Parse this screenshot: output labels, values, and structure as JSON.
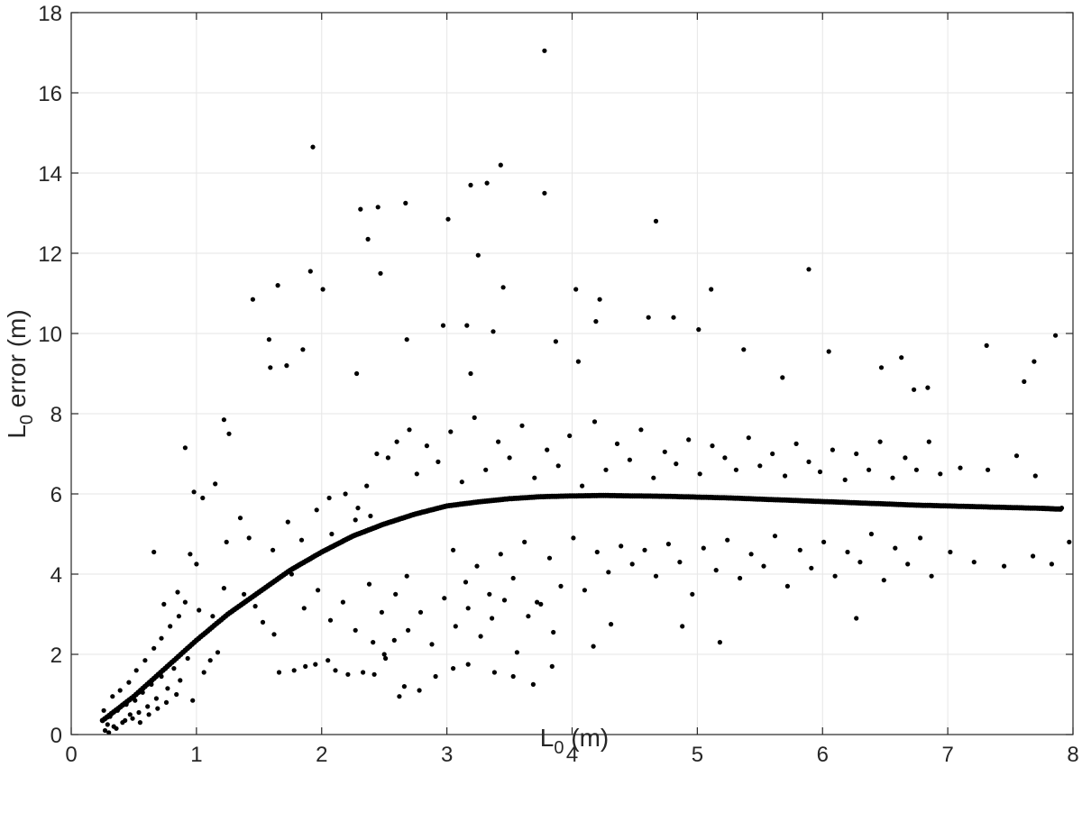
{
  "chart_data": {
    "type": "scatter",
    "title": "",
    "xlabel": "L0 (m)",
    "xlabel_parts": [
      "L",
      "0",
      " (m)"
    ],
    "ylabel": "L0 error (m)",
    "ylabel_parts": [
      "L",
      "0",
      " error (m)"
    ],
    "xlim": [
      0,
      8
    ],
    "ylim": [
      0,
      18
    ],
    "xticks": [
      0,
      1,
      2,
      3,
      4,
      5,
      6,
      7,
      8
    ],
    "yticks": [
      0,
      2,
      4,
      6,
      8,
      10,
      12,
      14,
      16,
      18
    ],
    "grid": true,
    "legend": "none",
    "marker_color": "#000000",
    "series": [
      {
        "name": "",
        "points": [
          [
            3.78,
            17.05
          ],
          [
            1.93,
            14.65
          ],
          [
            3.43,
            14.2
          ],
          [
            3.32,
            13.75
          ],
          [
            3.19,
            13.7
          ],
          [
            2.31,
            13.1
          ],
          [
            2.45,
            13.15
          ],
          [
            2.67,
            13.25
          ],
          [
            3.01,
            12.85
          ],
          [
            2.37,
            12.35
          ],
          [
            3.78,
            13.5
          ],
          [
            4.67,
            12.8
          ],
          [
            3.25,
            11.95
          ],
          [
            5.89,
            11.6
          ],
          [
            1.91,
            11.55
          ],
          [
            2.47,
            11.5
          ],
          [
            3.45,
            11.15
          ],
          [
            1.65,
            11.2
          ],
          [
            2.01,
            11.1
          ],
          [
            4.03,
            11.1
          ],
          [
            1.45,
            10.85
          ],
          [
            4.22,
            10.85
          ],
          [
            5.11,
            11.1
          ],
          [
            2.97,
            10.2
          ],
          [
            3.16,
            10.2
          ],
          [
            4.19,
            10.3
          ],
          [
            3.37,
            10.05
          ],
          [
            4.61,
            10.4
          ],
          [
            4.81,
            10.4
          ],
          [
            5.01,
            10.1
          ],
          [
            7.86,
            9.95
          ],
          [
            1.58,
            9.85
          ],
          [
            2.68,
            9.85
          ],
          [
            3.87,
            9.8
          ],
          [
            1.85,
            9.6
          ],
          [
            5.37,
            9.6
          ],
          [
            6.05,
            9.55
          ],
          [
            7.31,
            9.7
          ],
          [
            1.59,
            9.15
          ],
          [
            1.72,
            9.2
          ],
          [
            4.05,
            9.3
          ],
          [
            7.69,
            9.3
          ],
          [
            6.47,
            9.15
          ],
          [
            2.28,
            9.0
          ],
          [
            3.19,
            9.0
          ],
          [
            6.63,
            9.4
          ],
          [
            5.68,
            8.9
          ],
          [
            1.22,
            7.85
          ],
          [
            0.91,
            7.15
          ],
          [
            1.26,
            7.5
          ],
          [
            6.73,
            8.6
          ],
          [
            6.84,
            8.65
          ],
          [
            7.61,
            8.8
          ],
          [
            0.98,
            6.05
          ],
          [
            1.05,
            5.9
          ],
          [
            1.15,
            6.25
          ],
          [
            0.66,
            4.55
          ],
          [
            0.95,
            4.5
          ],
          [
            1.0,
            4.25
          ],
          [
            1.24,
            4.8
          ],
          [
            1.42,
            4.9
          ],
          [
            1.35,
            5.4
          ],
          [
            0.74,
            3.25
          ],
          [
            0.85,
            3.55
          ],
          [
            0.91,
            3.3
          ],
          [
            1.02,
            3.1
          ],
          [
            1.13,
            2.95
          ],
          [
            1.22,
            3.65
          ],
          [
            1.38,
            3.5
          ],
          [
            1.47,
            3.2
          ],
          [
            1.53,
            2.8
          ],
          [
            1.62,
            2.5
          ],
          [
            1.66,
            1.55
          ],
          [
            1.78,
            1.6
          ],
          [
            1.87,
            1.7
          ],
          [
            1.95,
            1.75
          ],
          [
            2.05,
            1.85
          ],
          [
            2.11,
            1.6
          ],
          [
            2.21,
            1.5
          ],
          [
            2.33,
            1.55
          ],
          [
            2.42,
            1.5
          ],
          [
            2.51,
            1.9
          ],
          [
            2.62,
            0.95
          ],
          [
            2.66,
            1.2
          ],
          [
            2.78,
            1.1
          ],
          [
            2.91,
            1.45
          ],
          [
            3.05,
            1.65
          ],
          [
            3.17,
            1.75
          ],
          [
            3.38,
            1.55
          ],
          [
            3.53,
            1.45
          ],
          [
            3.69,
            1.25
          ],
          [
            3.84,
            1.7
          ],
          [
            4.17,
            2.2
          ],
          [
            4.31,
            2.75
          ],
          [
            4.88,
            2.7
          ],
          [
            5.18,
            2.3
          ],
          [
            6.27,
            2.9
          ],
          [
            0.27,
            0.1
          ],
          [
            0.29,
            0.25
          ],
          [
            0.31,
            0.45
          ],
          [
            0.34,
            0.2
          ],
          [
            0.37,
            0.6
          ],
          [
            0.41,
            0.3
          ],
          [
            0.44,
            0.75
          ],
          [
            0.47,
            0.5
          ],
          [
            0.51,
            0.85
          ],
          [
            0.54,
            0.55
          ],
          [
            0.57,
            1.05
          ],
          [
            0.61,
            0.7
          ],
          [
            0.64,
            1.25
          ],
          [
            0.68,
            0.9
          ],
          [
            0.72,
            1.45
          ],
          [
            0.77,
            1.15
          ],
          [
            0.82,
            1.65
          ],
          [
            0.87,
            1.35
          ],
          [
            0.93,
            1.9
          ],
          [
            0.97,
            0.85
          ],
          [
            1.06,
            1.55
          ],
          [
            1.11,
            1.85
          ],
          [
            1.17,
            2.05
          ],
          [
            0.26,
            0.6
          ],
          [
            0.33,
            0.95
          ],
          [
            0.39,
            1.1
          ],
          [
            0.46,
            1.3
          ],
          [
            0.52,
            1.6
          ],
          [
            0.59,
            1.85
          ],
          [
            0.66,
            2.15
          ],
          [
            0.72,
            2.4
          ],
          [
            0.79,
            2.7
          ],
          [
            0.86,
            2.95
          ],
          [
            0.3,
            0.05
          ],
          [
            0.36,
            0.15
          ],
          [
            0.43,
            0.35
          ],
          [
            0.49,
            0.4
          ],
          [
            0.55,
            0.3
          ],
          [
            0.62,
            0.5
          ],
          [
            0.69,
            0.65
          ],
          [
            0.76,
            0.8
          ],
          [
            0.84,
            1.0
          ],
          [
            2.08,
            5.0
          ],
          [
            2.27,
            5.35
          ],
          [
            2.36,
            6.2
          ],
          [
            2.44,
            7.0
          ],
          [
            2.53,
            6.9
          ],
          [
            2.6,
            7.3
          ],
          [
            2.7,
            7.6
          ],
          [
            2.76,
            6.5
          ],
          [
            2.84,
            7.2
          ],
          [
            2.93,
            6.8
          ],
          [
            3.03,
            7.55
          ],
          [
            3.12,
            6.3
          ],
          [
            3.22,
            7.9
          ],
          [
            3.31,
            6.6
          ],
          [
            3.41,
            7.3
          ],
          [
            3.5,
            6.9
          ],
          [
            3.6,
            7.7
          ],
          [
            3.7,
            6.4
          ],
          [
            3.8,
            7.1
          ],
          [
            3.89,
            6.7
          ],
          [
            3.98,
            7.45
          ],
          [
            4.08,
            6.2
          ],
          [
            4.18,
            7.8
          ],
          [
            4.27,
            6.6
          ],
          [
            4.36,
            7.25
          ],
          [
            4.46,
            6.85
          ],
          [
            4.55,
            7.6
          ],
          [
            4.65,
            6.4
          ],
          [
            4.74,
            7.05
          ],
          [
            4.83,
            6.75
          ],
          [
            4.93,
            7.35
          ],
          [
            5.02,
            6.5
          ],
          [
            5.12,
            7.2
          ],
          [
            5.22,
            6.9
          ],
          [
            5.31,
            6.6
          ],
          [
            5.41,
            7.4
          ],
          [
            5.5,
            6.7
          ],
          [
            5.6,
            7.0
          ],
          [
            5.7,
            6.45
          ],
          [
            5.79,
            7.25
          ],
          [
            5.89,
            6.8
          ],
          [
            5.98,
            6.55
          ],
          [
            6.08,
            7.1
          ],
          [
            6.18,
            6.35
          ],
          [
            6.27,
            7.0
          ],
          [
            6.37,
            6.6
          ],
          [
            6.46,
            7.3
          ],
          [
            6.56,
            6.4
          ],
          [
            6.66,
            6.9
          ],
          [
            6.75,
            6.6
          ],
          [
            6.85,
            7.3
          ],
          [
            6.94,
            6.5
          ],
          [
            7.1,
            6.65
          ],
          [
            7.32,
            6.6
          ],
          [
            7.55,
            6.95
          ],
          [
            7.7,
            6.45
          ],
          [
            3.05,
            4.6
          ],
          [
            3.15,
            3.8
          ],
          [
            3.24,
            4.2
          ],
          [
            3.34,
            3.5
          ],
          [
            3.43,
            4.5
          ],
          [
            3.53,
            3.9
          ],
          [
            3.62,
            4.8
          ],
          [
            3.72,
            3.3
          ],
          [
            3.82,
            4.4
          ],
          [
            3.91,
            3.7
          ],
          [
            4.01,
            4.9
          ],
          [
            4.1,
            3.6
          ],
          [
            4.2,
            4.55
          ],
          [
            4.29,
            4.05
          ],
          [
            4.39,
            4.7
          ],
          [
            4.48,
            4.25
          ],
          [
            4.58,
            4.6
          ],
          [
            4.67,
            3.95
          ],
          [
            4.77,
            4.75
          ],
          [
            4.86,
            4.3
          ],
          [
            4.96,
            3.5
          ],
          [
            5.05,
            4.65
          ],
          [
            5.15,
            4.1
          ],
          [
            5.24,
            4.85
          ],
          [
            5.34,
            3.9
          ],
          [
            5.43,
            4.5
          ],
          [
            5.53,
            4.2
          ],
          [
            5.62,
            4.95
          ],
          [
            5.72,
            3.7
          ],
          [
            5.82,
            4.6
          ],
          [
            5.91,
            4.15
          ],
          [
            6.01,
            4.8
          ],
          [
            6.1,
            3.95
          ],
          [
            6.2,
            4.55
          ],
          [
            6.3,
            4.3
          ],
          [
            6.39,
            5.0
          ],
          [
            6.49,
            3.85
          ],
          [
            6.58,
            4.65
          ],
          [
            6.68,
            4.25
          ],
          [
            6.78,
            4.9
          ],
          [
            6.87,
            3.95
          ],
          [
            7.02,
            4.55
          ],
          [
            7.21,
            4.3
          ],
          [
            7.45,
            4.2
          ],
          [
            7.68,
            4.45
          ],
          [
            7.83,
            4.25
          ],
          [
            7.97,
            4.8
          ],
          [
            7.91,
            5.65
          ],
          [
            2.41,
            2.3
          ],
          [
            2.5,
            2.0
          ],
          [
            2.59,
            3.5
          ],
          [
            2.69,
            2.6
          ],
          [
            2.79,
            3.05
          ],
          [
            2.88,
            2.25
          ],
          [
            2.98,
            3.4
          ],
          [
            3.07,
            2.7
          ],
          [
            3.17,
            3.15
          ],
          [
            3.27,
            2.45
          ],
          [
            3.36,
            2.9
          ],
          [
            3.46,
            3.35
          ],
          [
            3.56,
            2.05
          ],
          [
            3.65,
            2.95
          ],
          [
            3.75,
            3.25
          ],
          [
            3.85,
            2.55
          ],
          [
            1.76,
            4.0
          ],
          [
            1.86,
            3.15
          ],
          [
            1.97,
            3.6
          ],
          [
            2.07,
            2.85
          ],
          [
            2.17,
            3.3
          ],
          [
            2.27,
            2.6
          ],
          [
            2.38,
            3.75
          ],
          [
            2.48,
            3.05
          ],
          [
            2.58,
            2.35
          ],
          [
            2.68,
            3.95
          ],
          [
            1.61,
            4.6
          ],
          [
            1.73,
            5.3
          ],
          [
            1.84,
            4.85
          ],
          [
            1.96,
            5.6
          ],
          [
            2.06,
            5.9
          ],
          [
            2.19,
            6.0
          ],
          [
            2.29,
            5.65
          ],
          [
            2.39,
            5.45
          ]
        ]
      },
      {
        "name": "",
        "curve": [
          [
            0.25,
            0.35
          ],
          [
            0.5,
            0.95
          ],
          [
            0.75,
            1.65
          ],
          [
            1.0,
            2.35
          ],
          [
            1.25,
            3.0
          ],
          [
            1.5,
            3.55
          ],
          [
            1.75,
            4.1
          ],
          [
            2.0,
            4.55
          ],
          [
            2.25,
            4.95
          ],
          [
            2.5,
            5.25
          ],
          [
            2.75,
            5.5
          ],
          [
            3.0,
            5.7
          ],
          [
            3.25,
            5.8
          ],
          [
            3.5,
            5.88
          ],
          [
            3.75,
            5.93
          ],
          [
            4.0,
            5.95
          ],
          [
            4.25,
            5.96
          ],
          [
            4.5,
            5.95
          ],
          [
            4.75,
            5.94
          ],
          [
            5.0,
            5.92
          ],
          [
            5.25,
            5.9
          ],
          [
            5.5,
            5.87
          ],
          [
            5.75,
            5.84
          ],
          [
            6.0,
            5.81
          ],
          [
            6.25,
            5.78
          ],
          [
            6.5,
            5.75
          ],
          [
            6.75,
            5.72
          ],
          [
            7.0,
            5.7
          ],
          [
            7.25,
            5.68
          ],
          [
            7.5,
            5.66
          ],
          [
            7.75,
            5.64
          ],
          [
            7.9,
            5.62
          ]
        ]
      }
    ]
  }
}
